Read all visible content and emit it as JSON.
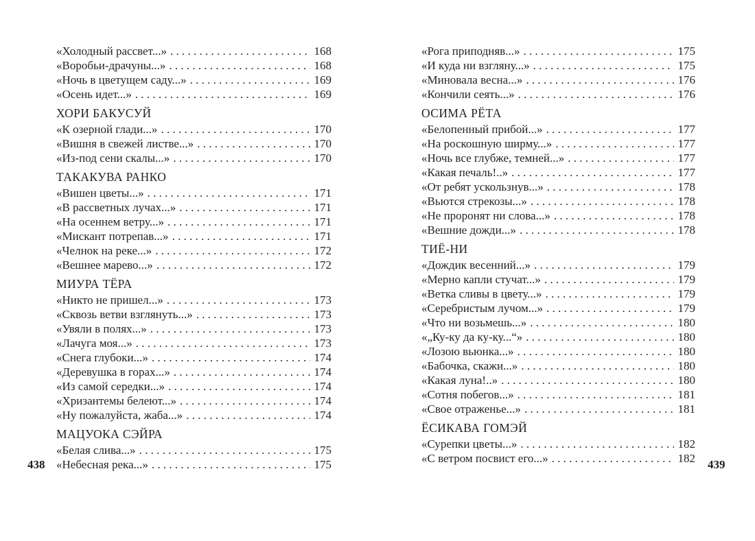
{
  "colors": {
    "page_background": "#ffffff",
    "text": "#242424"
  },
  "left_page": {
    "folio": "438",
    "sections": [
      {
        "heading": "",
        "entries": [
          {
            "title": "«Холодный рассвет...»",
            "page": "168"
          },
          {
            "title": "«Воробьи-драчуны...»",
            "page": "168"
          },
          {
            "title": "«Ночь в цветущем саду...»",
            "page": "169"
          },
          {
            "title": "«Осень идет...»",
            "page": "169"
          }
        ]
      },
      {
        "heading": "ХОРИ БАКУСУЙ",
        "entries": [
          {
            "title": "«К озерной глади...»",
            "page": "170"
          },
          {
            "title": "«Вишня в свежей листве...»",
            "page": "170"
          },
          {
            "title": "«Из-под сени скалы...»",
            "page": "170"
          }
        ]
      },
      {
        "heading": "ТАКАКУВА РАНКО",
        "entries": [
          {
            "title": "«Вишен цветы...»",
            "page": "171"
          },
          {
            "title": "«В рассветных лучах...»",
            "page": "171"
          },
          {
            "title": "«На осеннем ветру...»",
            "page": "171"
          },
          {
            "title": "«Мискант потрепав...»",
            "page": "171"
          },
          {
            "title": "«Челнок на реке...»",
            "page": "172"
          },
          {
            "title": "«Вешнее марево...»",
            "page": "172"
          }
        ]
      },
      {
        "heading": "МИУРА ТЁРА",
        "entries": [
          {
            "title": "«Никто не пришел...»",
            "page": "173"
          },
          {
            "title": "«Сквозь ветви взглянуть...»",
            "page": "173"
          },
          {
            "title": "«Увяли в полях...»",
            "page": "173"
          },
          {
            "title": "«Лачуга моя...»",
            "page": "173"
          },
          {
            "title": "«Снега глубоки...»",
            "page": "174"
          },
          {
            "title": "«Деревушка в горах...»",
            "page": "174"
          },
          {
            "title": "«Из самой середки...»",
            "page": "174"
          },
          {
            "title": "«Хризантемы белеют...»",
            "page": "174"
          },
          {
            "title": "«Ну пожалуйста, жаба...»",
            "page": "174"
          }
        ]
      },
      {
        "heading": "МАЦУОКА СЭЙРА",
        "entries": [
          {
            "title": "«Белая слива...»",
            "page": "175"
          },
          {
            "title": "«Небесная река...»",
            "page": "175"
          }
        ]
      }
    ]
  },
  "right_page": {
    "folio": "439",
    "sections": [
      {
        "heading": "",
        "entries": [
          {
            "title": "«Рога приподняв...»",
            "page": "175"
          },
          {
            "title": "«И куда ни взгляну...»",
            "page": "175"
          },
          {
            "title": "«Миновала весна...»",
            "page": "176"
          },
          {
            "title": "«Кончили сеять...»",
            "page": "176"
          }
        ]
      },
      {
        "heading": "ОСИМА РЁТА",
        "entries": [
          {
            "title": "«Белопенный прибой...»",
            "page": "177"
          },
          {
            "title": "«На роскошную ширму...»",
            "page": "177"
          },
          {
            "title": "«Ночь все глубже, темней...»",
            "page": "177"
          },
          {
            "title": "«Какая печаль!..»",
            "page": "177"
          },
          {
            "title": "«От ребят ускользнув...»",
            "page": "178"
          },
          {
            "title": "«Вьются стрекозы...»",
            "page": "178"
          },
          {
            "title": "«Не проронят ни слова...»",
            "page": "178"
          },
          {
            "title": "«Вешние дожди...»",
            "page": "178"
          }
        ]
      },
      {
        "heading": "ТИЁ-НИ",
        "entries": [
          {
            "title": "«Дождик весенний...»",
            "page": "179"
          },
          {
            "title": "«Мерно капли стучат...»",
            "page": "179"
          },
          {
            "title": "«Ветка сливы в цвету...»",
            "page": "179"
          },
          {
            "title": "«Серебристым лучом...»",
            "page": "179"
          },
          {
            "title": "«Что ни возьмешь...»",
            "page": "180"
          },
          {
            "title": "«„Ку-ку да ку-ку...“»",
            "page": "180"
          },
          {
            "title": "«Лозою вьюнка...»",
            "page": "180"
          },
          {
            "title": "«Бабочка, скажи...»",
            "page": "180"
          },
          {
            "title": "«Какая луна!..»",
            "page": "180"
          },
          {
            "title": "«Сотня побегов...»",
            "page": "181"
          },
          {
            "title": "«Свое отраженье...»",
            "page": "181"
          }
        ]
      },
      {
        "heading": "ЁСИКАВА ГОМЭЙ",
        "entries": [
          {
            "title": "«Сурепки цветы...»",
            "page": "182"
          },
          {
            "title": "«С ветром посвист его...»",
            "page": "182"
          }
        ]
      }
    ]
  }
}
